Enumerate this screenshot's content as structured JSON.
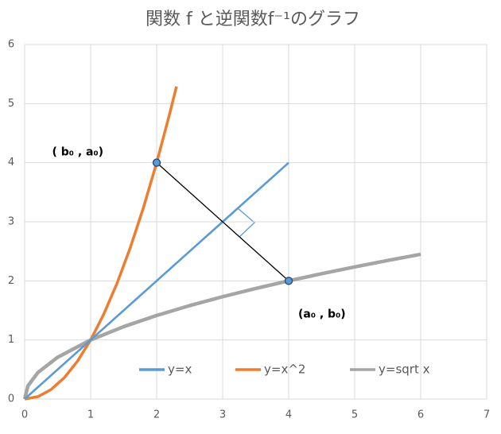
{
  "chart_data": {
    "type": "line",
    "title": "関数 f と逆関数f⁻¹のグラフ",
    "xlim": [
      0,
      7
    ],
    "xticks": [
      0,
      1,
      2,
      3,
      4,
      5,
      6,
      7
    ],
    "ylim": [
      0,
      6
    ],
    "yticks": [
      0,
      1,
      2,
      3,
      4,
      5,
      6
    ],
    "grid": true,
    "legend": "bottom",
    "series": [
      {
        "name": "y=x",
        "color": "#5b9bd5",
        "x": [
          0,
          1,
          2,
          3,
          4
        ],
        "values": [
          0,
          1,
          2,
          3,
          4
        ]
      },
      {
        "name": "y=x^2",
        "color": "#ed7d31",
        "x": [
          0,
          0.2,
          0.4,
          0.6,
          0.8,
          1,
          1.2,
          1.4,
          1.6,
          1.8,
          2,
          2.2,
          2.3
        ],
        "values": [
          0,
          0.04,
          0.16,
          0.36,
          0.64,
          1,
          1.44,
          1.96,
          2.56,
          3.24,
          4,
          4.84,
          5.29
        ]
      },
      {
        "name": "y=sqrt x",
        "color": "#a5a5a5",
        "x": [
          0,
          0.05,
          0.2,
          0.5,
          1,
          1.5,
          2,
          2.5,
          3,
          3.5,
          4,
          4.5,
          5,
          5.5,
          6
        ],
        "values": [
          0,
          0.224,
          0.447,
          0.707,
          1,
          1.225,
          1.414,
          1.581,
          1.732,
          1.871,
          2,
          2.121,
          2.236,
          2.345,
          2.449
        ]
      }
    ],
    "segment": {
      "color": "#000000",
      "x": [
        2,
        4
      ],
      "values": [
        4,
        2
      ]
    },
    "annotations": [
      {
        "text": "( b₀ , a₀)",
        "x": 2,
        "y": 4
      },
      {
        "text": "(a₀ , b₀)",
        "x": 4,
        "y": 2
      }
    ]
  }
}
